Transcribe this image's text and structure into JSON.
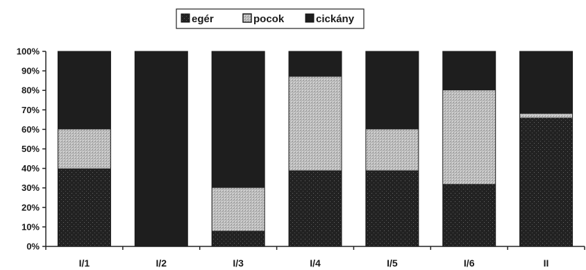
{
  "chart_data": {
    "type": "bar",
    "stacked": true,
    "percent": true,
    "categories": [
      "I/1",
      "I/2",
      "I/3",
      "I/4",
      "I/5",
      "I/6",
      "II"
    ],
    "series": [
      {
        "name": "egér",
        "values": [
          40,
          0,
          8,
          39,
          39,
          32,
          66
        ],
        "color": "#222222"
      },
      {
        "name": "pocok",
        "values": [
          20,
          0,
          22,
          48,
          21,
          48,
          2
        ],
        "color": "#bdbdbd"
      },
      {
        "name": "cickány",
        "values": [
          40,
          100,
          70,
          13,
          40,
          20,
          32
        ],
        "color": "#1e1e1e"
      }
    ],
    "ylim": [
      0,
      100
    ],
    "yticks": [
      "0%",
      "10%",
      "20%",
      "30%",
      "40%",
      "50%",
      "60%",
      "70%",
      "80%",
      "90%",
      "100%"
    ],
    "legend_position": "top-center",
    "grid": false
  }
}
